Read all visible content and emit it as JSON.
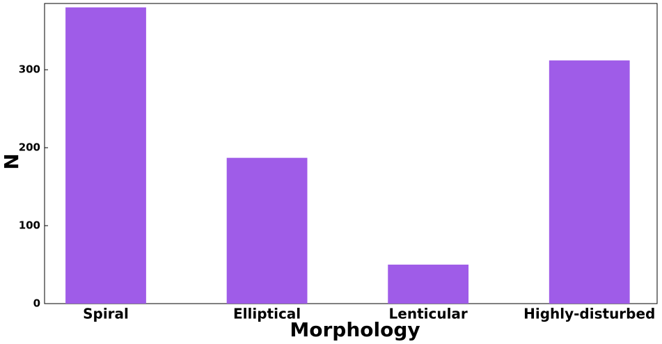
{
  "chart_data": {
    "type": "bar",
    "x_label": "Morphology",
    "y_label": "N",
    "categories": [
      "Spiral",
      "Elliptical",
      "Lenticular",
      "Highly-disturbed"
    ],
    "values": [
      380,
      187,
      50,
      312
    ],
    "color": "#9f5ce8",
    "ylim": [
      0,
      385
    ],
    "yticks": [
      0,
      100,
      200,
      300
    ],
    "grid": false
  }
}
